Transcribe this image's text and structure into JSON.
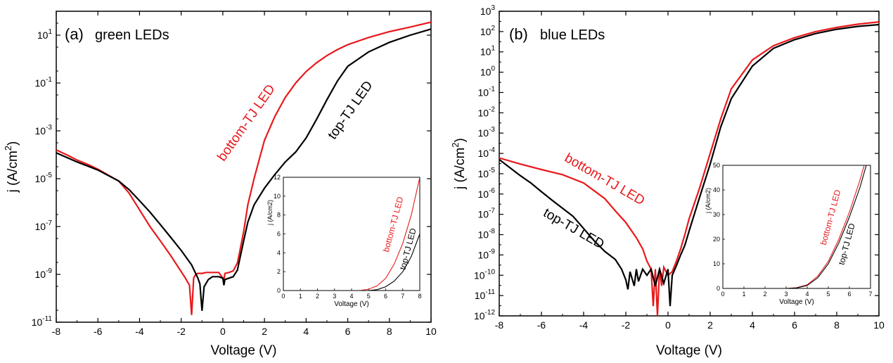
{
  "chart_data": [
    {
      "type": "line",
      "panel_label": "(a)",
      "title": "green LEDs",
      "xlabel": "Voltage (V)",
      "ylabel": "j (A/cm²)",
      "ylabel_main": "j (A/cm",
      "ylabel_sup": "2",
      "ylabel_close": ")",
      "log_y": true,
      "xlim": [
        -8,
        10
      ],
      "ylim_exp": [
        -11,
        2
      ],
      "x_ticks": [
        "-8",
        "-6",
        "-4",
        "-2",
        "0",
        "2",
        "4",
        "6",
        "8",
        "10"
      ],
      "y_tick_exponents": [
        "1",
        "-1",
        "-3",
        "-5",
        "-7",
        "-9",
        "-11"
      ],
      "series": [
        {
          "name": "bottom-TJ LED",
          "color": "#e8191c",
          "x": [
            -8,
            -7.5,
            -7,
            -6.5,
            -6,
            -5.5,
            -5,
            -4.5,
            -4,
            -3.5,
            -3,
            -2.5,
            -2,
            -1.8,
            -1.6,
            -1.5,
            -1.45,
            -1.4,
            -1.3,
            -1.2,
            -1.0,
            -0.8,
            -0.5,
            -0.2,
            0,
            0.05,
            0.1,
            0.3,
            0.5,
            0.7,
            0.8,
            1.0,
            1.2,
            1.5,
            2,
            2.5,
            3,
            3.5,
            4,
            4.5,
            5,
            5.5,
            6,
            7,
            8,
            9,
            10
          ],
          "y": [
            0.00016,
            0.0001,
            6e-05,
            4e-05,
            2.5e-05,
            1.4e-05,
            8e-06,
            2.5e-06,
            5e-07,
            1e-07,
            2.5e-08,
            6e-09,
            1.3e-09,
            7e-10,
            3.5e-10,
            2e-11,
            1.2e-10,
            7e-10,
            1e-09,
            1.1e-09,
            1.1e-09,
            1.2e-09,
            1.2e-09,
            1.2e-09,
            7e-10,
            5e-10,
            1.1e-09,
            1.2e-09,
            1.4e-09,
            3e-09,
            8e-09,
            6e-08,
            8e-07,
            1e-05,
            0.0004,
            0.004,
            0.025,
            0.1,
            0.3,
            0.7,
            1.4,
            2.5,
            4,
            8,
            14,
            22,
            35
          ]
        },
        {
          "name": "top-TJ LED",
          "color": "#000000",
          "x": [
            -8,
            -7,
            -6,
            -5,
            -4.5,
            -4,
            -3.5,
            -3,
            -2.5,
            -2,
            -1.5,
            -1.2,
            -1.1,
            -1.0,
            -0.9,
            -0.7,
            -0.5,
            -0.2,
            0,
            0.05,
            0.1,
            0.3,
            0.5,
            0.7,
            1.0,
            1.2,
            1.5,
            2,
            2.5,
            3,
            3.5,
            4,
            4.5,
            5,
            5.5,
            6,
            7,
            8,
            9,
            10
          ],
          "y": [
            0.00012,
            5e-05,
            2.3e-05,
            8e-06,
            3.5e-06,
            1.2e-06,
            4e-07,
            1.2e-07,
            3.5e-08,
            1e-08,
            2.5e-09,
            7e-10,
            4e-10,
            3e-11,
            3e-10,
            6e-10,
            8e-10,
            8e-10,
            7e-10,
            3.5e-10,
            6e-10,
            7e-10,
            8e-10,
            1.5e-09,
            2.5e-08,
            1.5e-07,
            8e-07,
            4e-06,
            1.5e-05,
            5e-05,
            0.00013,
            0.0005,
            0.003,
            0.02,
            0.12,
            0.5,
            2,
            5,
            10,
            18
          ]
        }
      ],
      "annotations": [
        "bottom-TJ LED",
        "top-TJ LED"
      ],
      "inset": {
        "xlabel": "Voltage (V)",
        "ylabel": "j (A/cm2)",
        "xlim": [
          0,
          8
        ],
        "ylim": [
          0,
          12
        ],
        "x_ticks": [
          "0",
          "1",
          "2",
          "3",
          "4",
          "5",
          "6",
          "7",
          "8"
        ],
        "y_ticks": [
          "0",
          "2",
          "4",
          "6",
          "8",
          "10",
          "12"
        ],
        "series": [
          {
            "name": "bottom-TJ LED",
            "color": "#e8191c",
            "x": [
              0,
              4.5,
              5,
              5.5,
              6,
              6.5,
              7,
              7.5,
              8
            ],
            "y": [
              0,
              0,
              0.15,
              0.5,
              1.3,
              2.8,
              5,
              8,
              12
            ]
          },
          {
            "name": "top-TJ LED",
            "color": "#000000",
            "x": [
              0,
              5,
              5.5,
              6,
              6.5,
              7,
              7.5,
              8
            ],
            "y": [
              0,
              0,
              0.1,
              0.4,
              1,
              2,
              3.6,
              6
            ]
          }
        ],
        "annotations": [
          "bottom-TJ LED",
          "top-TJ LED"
        ]
      }
    },
    {
      "type": "line",
      "panel_label": "(b)",
      "title": "blue LEDs",
      "xlabel": "Voltage (V)",
      "ylabel": "j (A/cm²)",
      "ylabel_main": "j (A/cm",
      "ylabel_sup": "2",
      "ylabel_close": ")",
      "log_y": true,
      "xlim": [
        -8,
        10
      ],
      "ylim_exp": [
        -12,
        3
      ],
      "x_ticks": [
        "-8",
        "-6",
        "-4",
        "-2",
        "0",
        "2",
        "4",
        "6",
        "8",
        "10"
      ],
      "y_tick_exponents": [
        "3",
        "2",
        "1",
        "0",
        "-1",
        "-2",
        "-3",
        "-4",
        "-5",
        "-6",
        "-7",
        "-8",
        "-9",
        "-10",
        "-11",
        "-12"
      ],
      "series": [
        {
          "name": "bottom-TJ LED",
          "color": "#e8191c",
          "x": [
            -8,
            -7,
            -6,
            -5,
            -4,
            -3,
            -2.5,
            -2,
            -1.5,
            -1.2,
            -1.0,
            -0.8,
            -0.7,
            -0.6,
            -0.5,
            -0.4,
            -0.3,
            -0.2,
            0,
            0.2,
            0.4,
            0.6,
            0.8,
            1.0,
            1.5,
            2,
            2.5,
            3,
            4,
            5,
            6,
            7,
            8,
            9,
            10
          ],
          "y": [
            6e-05,
            3e-05,
            1.6e-05,
            9e-06,
            3.5e-06,
            6e-07,
            1.5e-07,
            4e-08,
            7e-09,
            2e-09,
            5e-10,
            2e-10,
            3e-12,
            2e-10,
            1e-12,
            2e-10,
            3e-11,
            2.5e-10,
            1e-10,
            1.5e-10,
            5e-10,
            2e-09,
            1e-08,
            6e-08,
            2e-06,
            0.0001,
            0.005,
            0.15,
            4,
            20,
            50,
            100,
            160,
            230,
            300
          ]
        },
        {
          "name": "top-TJ LED",
          "color": "#000000",
          "x": [
            -8,
            -7.5,
            -7,
            -6.5,
            -6,
            -5.5,
            -5,
            -4.5,
            -4,
            -3.5,
            -3,
            -2.5,
            -2.2,
            -2,
            -1.9,
            -1.8,
            -1.6,
            -1.5,
            -1.4,
            -1.2,
            -1.0,
            -0.8,
            -0.6,
            -0.4,
            -0.2,
            0,
            0.1,
            0.2,
            0.4,
            0.6,
            0.8,
            1.0,
            1.5,
            2,
            2.5,
            3,
            4,
            5,
            6,
            7,
            8,
            9,
            10
          ],
          "y": [
            5e-05,
            2e-05,
            8e-06,
            3.5e-06,
            1.3e-06,
            5e-07,
            2e-07,
            8e-08,
            2e-08,
            5e-09,
            1.5e-09,
            6e-10,
            2e-10,
            6e-11,
            2e-11,
            1.5e-10,
            3e-11,
            2e-10,
            5e-11,
            2e-10,
            1e-10,
            2e-10,
            3e-11,
            2e-10,
            4e-11,
            2e-10,
            3e-12,
            1e-10,
            3e-10,
            1e-09,
            3e-09,
            1.5e-08,
            7e-07,
            3e-05,
            0.002,
            0.05,
            2,
            15,
            40,
            80,
            130,
            180,
            220
          ]
        }
      ],
      "annotations": [
        "bottom-TJ LED",
        "top-TJ LED"
      ],
      "inset": {
        "xlabel": "Voltage (V)",
        "ylabel": "j (A/cm2)",
        "xlim": [
          0,
          7
        ],
        "ylim": [
          0,
          50
        ],
        "x_ticks": [
          "0",
          "1",
          "2",
          "3",
          "4",
          "5",
          "6",
          "7"
        ],
        "y_ticks": [
          "0",
          "10",
          "20",
          "30",
          "40",
          "50"
        ],
        "series": [
          {
            "name": "bottom-TJ LED",
            "color": "#e8191c",
            "x": [
              0,
              3,
              3.5,
              4,
              4.5,
              5,
              5.5,
              6,
              6.5,
              6.7
            ],
            "y": [
              0,
              0,
              0.3,
              1.5,
              5,
              11,
              20,
              31,
              44,
              50
            ]
          },
          {
            "name": "top-TJ LED",
            "color": "#000000",
            "x": [
              0,
              3,
              3.5,
              4,
              4.5,
              5,
              5.5,
              6,
              6.5,
              6.8
            ],
            "y": [
              0,
              0,
              0.2,
              1.2,
              4.3,
              10,
              18.5,
              29,
              41,
              50
            ]
          }
        ],
        "annotations": [
          "bottom-TJ LED",
          "top-TJ LED"
        ]
      }
    }
  ]
}
